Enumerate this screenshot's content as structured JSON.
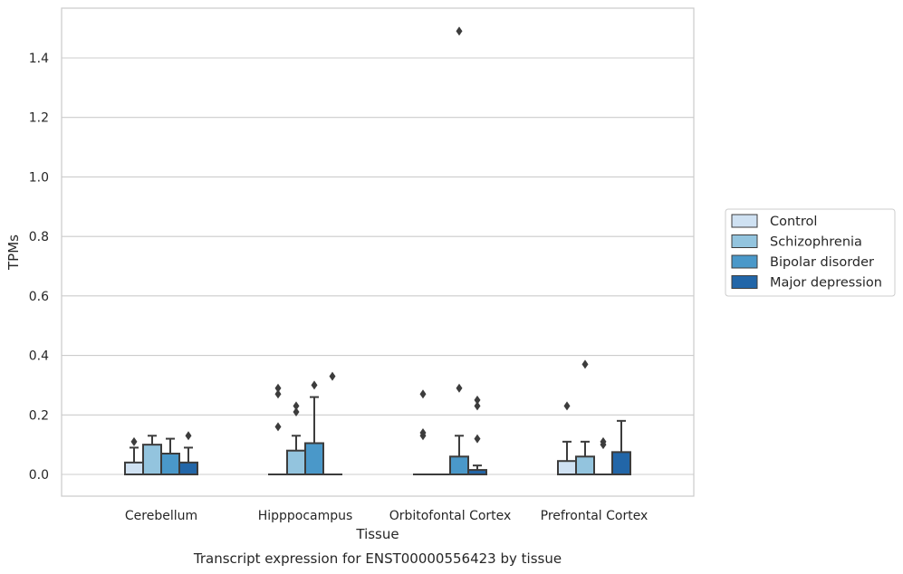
{
  "chart_data": {
    "type": "box",
    "caption": "Transcript expression for ENST00000556423 by tissue",
    "xlabel": "Tissue",
    "ylabel": "TPMs",
    "ylim": [
      -0.07,
      1.56
    ],
    "yticks": [
      0.0,
      0.2,
      0.4,
      0.6,
      0.8,
      1.0,
      1.2,
      1.4
    ],
    "ytick_labels": [
      "0.0",
      "0.2",
      "0.4",
      "0.6",
      "0.8",
      "1.0",
      "1.2",
      "1.4"
    ],
    "grid": true,
    "legend_position": "right",
    "categories": [
      "Cerebellum",
      "Hipppocampus",
      "Orbitofontal Cortex",
      "Prefrontal Cortex"
    ],
    "series": [
      {
        "name": "Control",
        "color": "#cfe1f2",
        "boxes": [
          {
            "q1": 0.0,
            "median": 0.0,
            "q3": 0.04,
            "whisker_low": 0.0,
            "whisker_high": 0.09,
            "outliers": [
              0.11
            ]
          },
          {
            "q1": 0.0,
            "median": 0.0,
            "q3": 0.0,
            "whisker_low": 0.0,
            "whisker_high": 0.0,
            "outliers": [
              0.16,
              0.27,
              0.29
            ]
          },
          {
            "q1": 0.0,
            "median": 0.0,
            "q3": 0.0,
            "whisker_low": 0.0,
            "whisker_high": 0.0,
            "outliers": [
              0.13,
              0.14,
              0.27
            ]
          },
          {
            "q1": 0.0,
            "median": 0.0,
            "q3": 0.045,
            "whisker_low": 0.0,
            "whisker_high": 0.11,
            "outliers": [
              0.23
            ]
          }
        ]
      },
      {
        "name": "Schizophrenia",
        "color": "#93c4de",
        "boxes": [
          {
            "q1": 0.0,
            "median": 0.0,
            "q3": 0.1,
            "whisker_low": 0.0,
            "whisker_high": 0.13,
            "outliers": []
          },
          {
            "q1": 0.0,
            "median": 0.0,
            "q3": 0.08,
            "whisker_low": 0.0,
            "whisker_high": 0.13,
            "outliers": [
              0.21,
              0.23
            ]
          },
          {
            "q1": 0.0,
            "median": 0.0,
            "q3": 0.0,
            "whisker_low": 0.0,
            "whisker_high": 0.0,
            "outliers": []
          },
          {
            "q1": 0.0,
            "median": 0.0,
            "q3": 0.06,
            "whisker_low": 0.0,
            "whisker_high": 0.11,
            "outliers": [
              0.37
            ]
          }
        ]
      },
      {
        "name": "Bipolar disorder",
        "color": "#4a98c9",
        "boxes": [
          {
            "q1": 0.0,
            "median": 0.0,
            "q3": 0.07,
            "whisker_low": 0.0,
            "whisker_high": 0.12,
            "outliers": []
          },
          {
            "q1": 0.0,
            "median": 0.0,
            "q3": 0.105,
            "whisker_low": 0.0,
            "whisker_high": 0.26,
            "outliers": [
              0.3
            ]
          },
          {
            "q1": 0.0,
            "median": 0.0,
            "q3": 0.06,
            "whisker_low": 0.0,
            "whisker_high": 0.13,
            "outliers": [
              0.29,
              1.49
            ]
          },
          {
            "q1": 0.0,
            "median": 0.0,
            "q3": 0.0,
            "whisker_low": 0.0,
            "whisker_high": 0.0,
            "outliers": [
              0.1,
              0.11
            ]
          }
        ]
      },
      {
        "name": "Major depression",
        "color": "#2266a8",
        "boxes": [
          {
            "q1": 0.0,
            "median": 0.0,
            "q3": 0.04,
            "whisker_low": 0.0,
            "whisker_high": 0.09,
            "outliers": [
              0.13
            ]
          },
          {
            "q1": 0.0,
            "median": 0.0,
            "q3": 0.0,
            "whisker_low": 0.0,
            "whisker_high": 0.0,
            "outliers": [
              0.33
            ]
          },
          {
            "q1": 0.0,
            "median": 0.0,
            "q3": 0.015,
            "whisker_low": 0.0,
            "whisker_high": 0.03,
            "outliers": [
              0.12,
              0.23,
              0.25
            ]
          },
          {
            "q1": 0.0,
            "median": 0.0,
            "q3": 0.075,
            "whisker_low": 0.0,
            "whisker_high": 0.18,
            "outliers": []
          }
        ]
      }
    ]
  }
}
